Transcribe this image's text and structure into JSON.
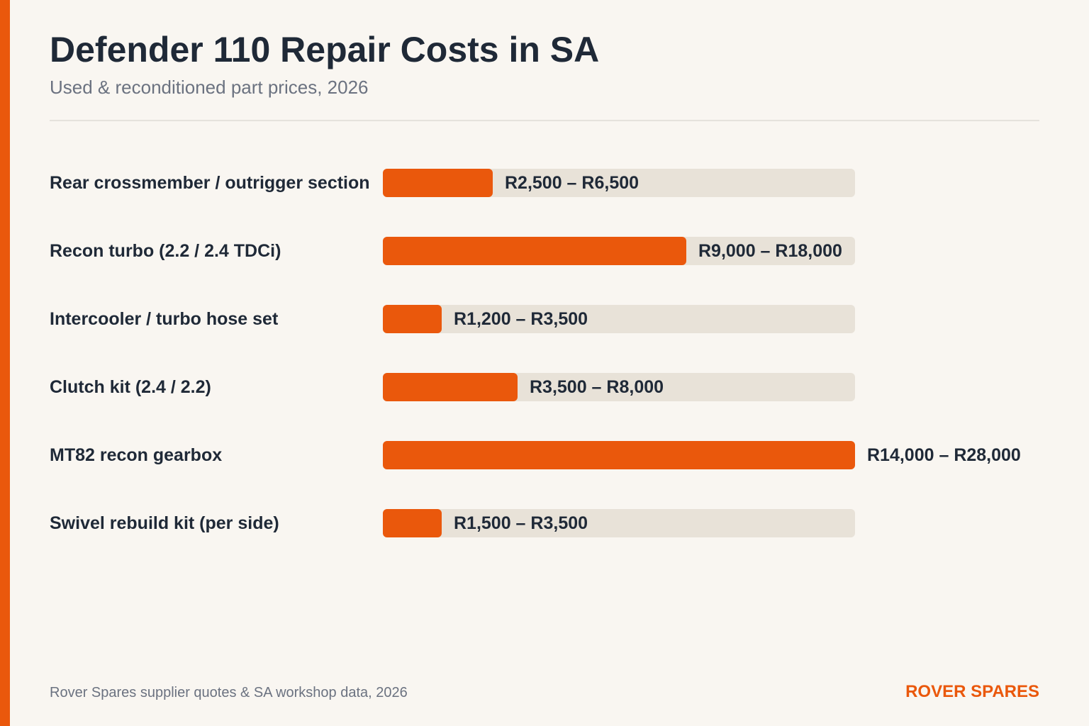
{
  "header": {
    "title": "Defender 110 Repair Costs in SA",
    "subtitle": "Used & reconditioned part prices, 2026"
  },
  "footer": {
    "source": "Rover Spares supplier quotes & SA workshop data, 2026",
    "brand": "ROVER SPARES"
  },
  "colors": {
    "accent": "#ea580c",
    "track": "#e8e2d8",
    "text": "#1f2937",
    "muted": "#6b7280",
    "background": "#f9f6f1"
  },
  "chart_data": {
    "type": "bar",
    "orientation": "horizontal",
    "xlim": [
      0,
      28000
    ],
    "grid": false,
    "legend": "none",
    "categories": [
      "Rear crossmember / outrigger section",
      "Recon turbo (2.2 / 2.4 TDCi)",
      "Intercooler / turbo hose set",
      "Clutch kit (2.4 / 2.2)",
      "MT82 recon gearbox",
      "Swivel rebuild kit (per side)"
    ],
    "ranges": [
      {
        "low": 2500,
        "high": 6500,
        "label": "R2,500 – R6,500"
      },
      {
        "low": 9000,
        "high": 18000,
        "label": "R9,000 – R18,000"
      },
      {
        "low": 1200,
        "high": 3500,
        "label": "R1,200 – R3,500"
      },
      {
        "low": 3500,
        "high": 8000,
        "label": "R3,500 – R8,000"
      },
      {
        "low": 14000,
        "high": 28000,
        "label": "R14,000 – R28,000"
      },
      {
        "low": 1500,
        "high": 3500,
        "label": "R1,500 – R3,500"
      }
    ]
  }
}
